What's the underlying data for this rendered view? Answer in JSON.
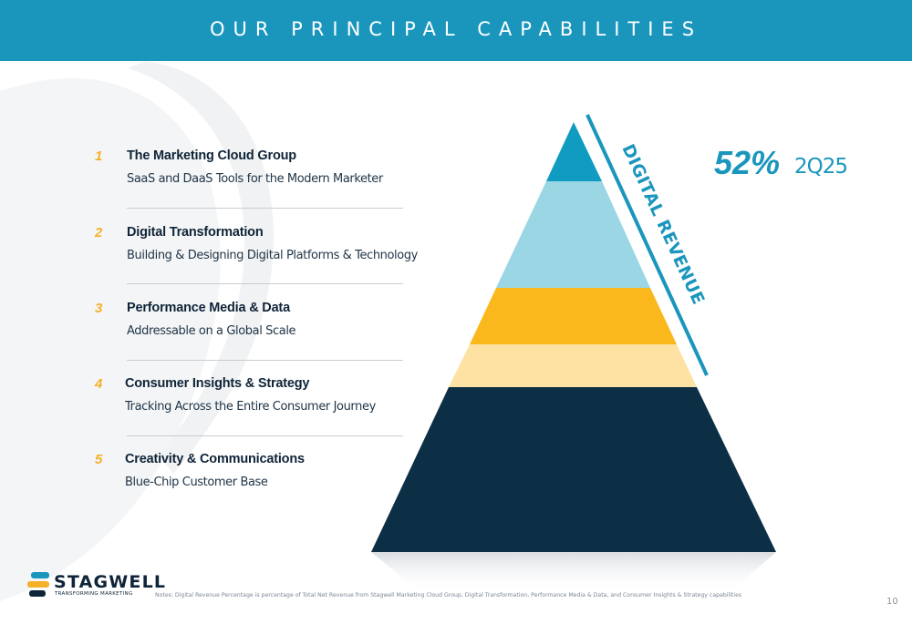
{
  "header": {
    "title": "OUR PRINCIPAL CAPABILITIES"
  },
  "capabilities": [
    {
      "number": "1",
      "title": "The Marketing Cloud Group",
      "subtitle": "SaaS and DaaS Tools for the Modern Marketer"
    },
    {
      "number": "2",
      "title": "Digital Transformation",
      "subtitle": "Building & Designing Digital Platforms & Technology"
    },
    {
      "number": "3",
      "title": "Performance Media & Data",
      "subtitle": "Addressable on a Global Scale"
    },
    {
      "number": "4",
      "title": "Consumer Insights & Strategy",
      "subtitle": "Tracking Across the Entire Consumer Journey"
    },
    {
      "number": "5",
      "title": "Creativity & Communications",
      "subtitle": "Blue-Chip Customer Base"
    }
  ],
  "pyramid": {
    "layer_colors": [
      "#0f9cc0",
      "#9ad6e4",
      "#fbb81d",
      "#fde2a4",
      "#0c2f45"
    ],
    "bracket_label": "DIGITAL REVENUE",
    "bracket_color": "#1a96bd"
  },
  "stat": {
    "percent": "52%",
    "period": "2Q25"
  },
  "logo": {
    "name": "STAGWELL",
    "tagline": "TRANSFORMING MARKETING"
  },
  "footer": {
    "notes": "Notes: Digital Revenue Percentage is percentage of Total Net Revenue from Stagwell Marketing Cloud Group, Digital Transformation, Performance Media & Data, and Consumer Insights & Strategy capabilities",
    "page_number": "10"
  },
  "colors": {
    "accent": "#1a96bd",
    "navy": "#0f2438",
    "gold": "#f4b12a"
  }
}
